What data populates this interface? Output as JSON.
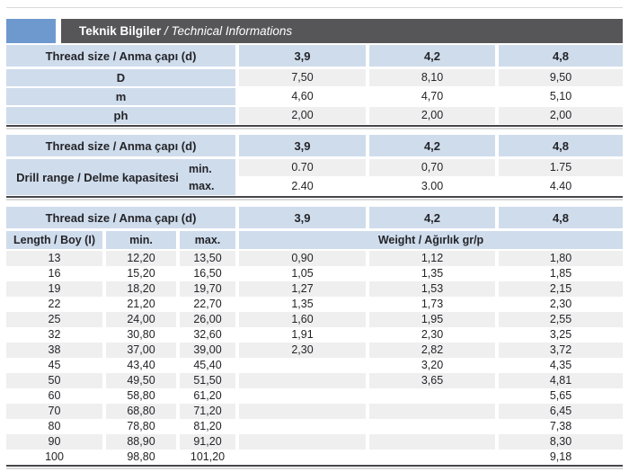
{
  "header": {
    "title_tr": "Teknik Bilgiler",
    "title_en": " / Technical Informations"
  },
  "colors": {
    "accent_blue": "#6d99cf",
    "header_bar": "#565659",
    "cell_blue": "#cfdcec",
    "stripe_gray": "#f0eff0",
    "rule_dark": "#46464a"
  },
  "thread_header_label": "Thread size / Anma çapı (d)",
  "thread_sizes": [
    "3,9",
    "4,2",
    "4,8"
  ],
  "table1": {
    "rows": [
      {
        "label": "D",
        "values": [
          "7,50",
          "8,10",
          "9,50"
        ]
      },
      {
        "label": "m",
        "values": [
          "4,60",
          "4,70",
          "5,10"
        ]
      },
      {
        "label": "ph",
        "values": [
          "2,00",
          "2,00",
          "2,00"
        ]
      }
    ]
  },
  "table2": {
    "label": "Drill range / Delme kapasitesi",
    "rows": [
      {
        "sub": "min.",
        "values": [
          "0.70",
          "0,70",
          "1.75"
        ]
      },
      {
        "sub": "max.",
        "values": [
          "2.40",
          "3.00",
          "4.40"
        ]
      }
    ]
  },
  "table3": {
    "length_header": "Length / Boy (I)",
    "min_header": "min.",
    "max_header": "max.",
    "weight_header": "Weight / Ağırlık gr/p",
    "rows": [
      [
        "13",
        "12,20",
        "13,50",
        "0,90",
        "1,12",
        "1,80"
      ],
      [
        "16",
        "15,20",
        "16,50",
        "1,05",
        "1,35",
        "1,85"
      ],
      [
        "19",
        "18,20",
        "19,70",
        "1,27",
        "1,53",
        "2,15"
      ],
      [
        "22",
        "21,20",
        "22,70",
        "1,35",
        "1,73",
        "2,30"
      ],
      [
        "25",
        "24,00",
        "26,00",
        "1,60",
        "1,95",
        "2,55"
      ],
      [
        "32",
        "30,80",
        "32,60",
        "1,91",
        "2,30",
        "3,25"
      ],
      [
        "38",
        "37,00",
        "39,00",
        "2,30",
        "2,82",
        "3,72"
      ],
      [
        "45",
        "43,40",
        "45,40",
        "",
        "3,20",
        "4,35"
      ],
      [
        "50",
        "49,50",
        "51,50",
        "",
        "3,65",
        "4,81"
      ],
      [
        "60",
        "58,80",
        "61,20",
        "",
        "",
        "5,65"
      ],
      [
        "70",
        "68,80",
        "71,20",
        "",
        "",
        "6,45"
      ],
      [
        "80",
        "78,80",
        "81,20",
        "",
        "",
        "7,38"
      ],
      [
        "90",
        "88,90",
        "91,20",
        "",
        "",
        "8,30"
      ],
      [
        "100",
        "98,80",
        "101,20",
        "",
        "",
        "9,18"
      ]
    ]
  }
}
